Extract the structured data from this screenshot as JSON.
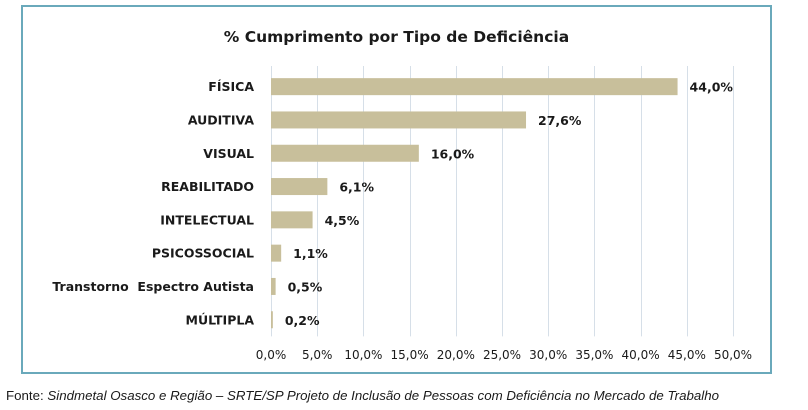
{
  "chart_data": {
    "type": "bar",
    "orientation": "horizontal",
    "title": "% Cumprimento por Tipo de Deficiência",
    "categories": [
      "FÍSICA",
      "AUDITIVA",
      "VISUAL",
      "REABILITADO",
      "INTELECTUAL",
      "PSICOSSOCIAL",
      "Transtorno  Espectro Autista",
      "MÚLTIPLA"
    ],
    "values": [
      44.0,
      27.6,
      16.0,
      6.1,
      4.5,
      1.1,
      0.5,
      0.2
    ],
    "value_labels": [
      "44,0%",
      "27,6%",
      "16,0%",
      "6,1%",
      "4,5%",
      "1,1%",
      "0,5%",
      "0,2%"
    ],
    "xlim": [
      0,
      50
    ],
    "xticks": [
      0,
      5,
      10,
      15,
      20,
      25,
      30,
      35,
      40,
      45,
      50
    ],
    "xtick_labels": [
      "0,0%",
      "5,0%",
      "10,0%",
      "15,0%",
      "20,0%",
      "25,0%",
      "30,0%",
      "35,0%",
      "40,0%",
      "45,0%",
      "50,0%"
    ],
    "xlabel": "",
    "ylabel": "",
    "grid": true,
    "legend": "none",
    "colors": {
      "bar": "#c8bf9b",
      "grid": "#d6dfe8",
      "frame": "#6aa9bb"
    }
  },
  "source": {
    "prefix": "Fonte: ",
    "text": "Sindmetal Osasco e Região – SRTE/SP Projeto de Inclusão de Pessoas com Deficiência no Mercado de Trabalho"
  }
}
